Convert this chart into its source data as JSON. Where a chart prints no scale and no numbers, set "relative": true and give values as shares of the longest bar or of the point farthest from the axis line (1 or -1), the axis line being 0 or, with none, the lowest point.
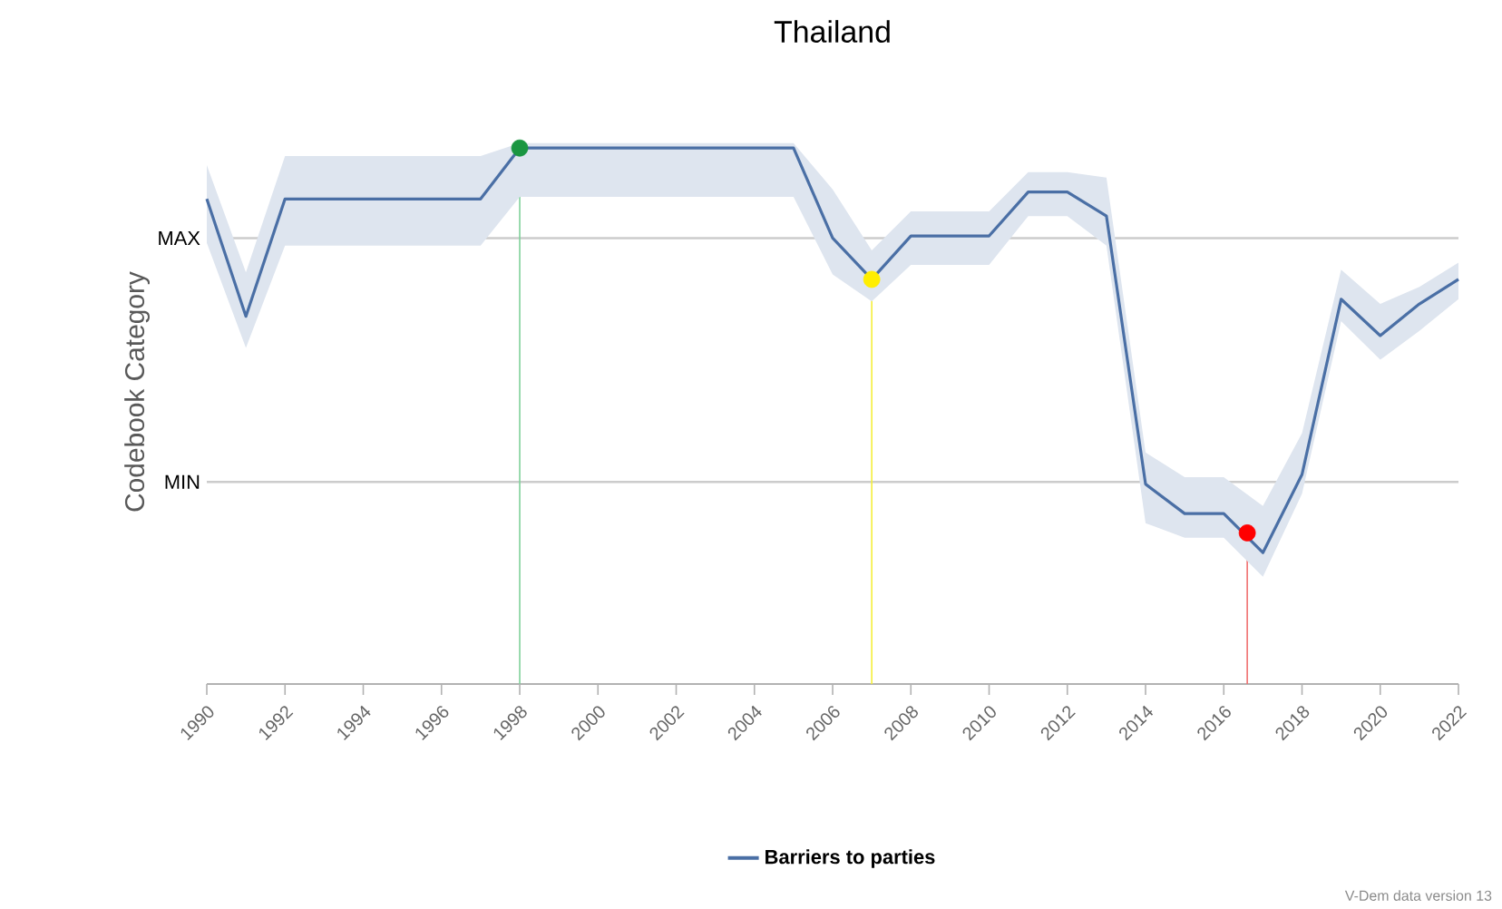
{
  "chart_data": {
    "type": "line",
    "title": "Thailand",
    "ylabel": "Codebook Category",
    "relative": true,
    "xlim": [
      1990,
      2022
    ],
    "xticks": [
      1990,
      1992,
      1994,
      1996,
      1998,
      2000,
      2002,
      2004,
      2006,
      2008,
      2010,
      2012,
      2014,
      2016,
      2018,
      2020,
      2022
    ],
    "legend": "bottom",
    "marker": "none",
    "line_style": "solid",
    "series": [
      {
        "name": "Barriers to parties",
        "color": "#4a6fa5",
        "x": [
          1990,
          1991,
          1992,
          1997,
          1998,
          2005,
          2006,
          2007,
          2008,
          2010,
          2011,
          2012,
          2013,
          2014,
          2015,
          2016,
          2017,
          2018,
          2019,
          2020,
          2021,
          2022
        ],
        "values": [
          0.905,
          0.686,
          0.905,
          0.905,
          1.0,
          1.0,
          0.832,
          0.755,
          0.836,
          0.836,
          0.918,
          0.918,
          0.873,
          0.373,
          0.318,
          0.318,
          0.245,
          0.391,
          0.718,
          0.65,
          0.709,
          0.755
        ],
        "lower": [
          0.823,
          0.627,
          0.818,
          0.818,
          0.909,
          0.909,
          0.764,
          0.714,
          0.782,
          0.782,
          0.873,
          0.873,
          0.818,
          0.3,
          0.273,
          0.273,
          0.2,
          0.355,
          0.677,
          0.605,
          0.659,
          0.718
        ],
        "upper": [
          0.968,
          0.768,
          0.985,
          0.985,
          1.009,
          1.009,
          0.923,
          0.809,
          0.882,
          0.882,
          0.955,
          0.955,
          0.945,
          0.432,
          0.386,
          0.386,
          0.332,
          0.468,
          0.773,
          0.709,
          0.741,
          0.786
        ]
      },
      {
        "type": "scatter",
        "marker": "circle",
        "x": [
          1998,
          2007,
          2016.6
        ],
        "values": [
          1.0,
          0.755,
          0.282
        ],
        "colors": [
          "#1a9641",
          "#ffee00",
          "#ff0000"
        ]
      }
    ],
    "ref_lines": [
      {
        "axis": "y",
        "value": 0.832,
        "label": "MAX",
        "color": "#cccccc"
      },
      {
        "axis": "y",
        "value": 0.377,
        "label": "MIN",
        "color": "#cccccc"
      },
      {
        "axis": "x",
        "value": 1998,
        "color": "#7fd19a"
      },
      {
        "axis": "x",
        "value": 2007,
        "color": "#f5ef3a"
      },
      {
        "axis": "x",
        "value": 2016.6,
        "color": "#f07070"
      }
    ],
    "annotations": [
      "V-Dem data version 13"
    ]
  }
}
